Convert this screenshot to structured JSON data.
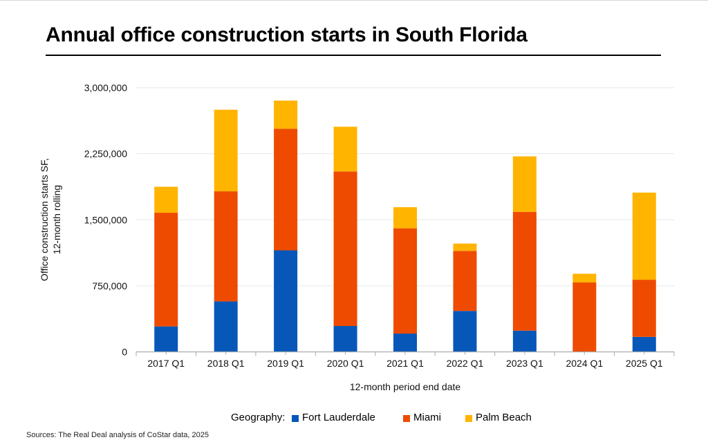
{
  "title": "Annual office construction starts in South Florida",
  "source": "Sources: The Real Deal analysis of CoStar data, 2025",
  "legend": {
    "title": "Geography:",
    "items": [
      {
        "label": "Fort Lauderdale",
        "color": "#0757b8"
      },
      {
        "label": "Miami",
        "color": "#ee4b00"
      },
      {
        "label": "Palm Beach",
        "color": "#ffb400"
      }
    ]
  },
  "chart_data": {
    "type": "bar",
    "stacked": true,
    "title": "Annual office construction starts in South Florida",
    "xlabel": "12-month period end date",
    "ylabel": "Office construction starts SF, 12-month rolling",
    "ylabel_lines": [
      "Office construction starts SF,",
      "12-month rolling"
    ],
    "ylim": [
      0,
      3000000
    ],
    "yticks": [
      0,
      750000,
      1500000,
      2250000,
      3000000
    ],
    "ytick_labels": [
      "0",
      "750,000",
      "1,500,000",
      "2,250,000",
      "3,000,000"
    ],
    "grid": true,
    "legend_position": "bottom",
    "categories": [
      "2017 Q1",
      "2018 Q1",
      "2019 Q1",
      "2020 Q1",
      "2021 Q1",
      "2022 Q1",
      "2023 Q1",
      "2024 Q1",
      "2025 Q1"
    ],
    "series": [
      {
        "name": "Fort Lauderdale",
        "color": "#0757b8",
        "values": [
          289000,
          573000,
          1153000,
          294000,
          208000,
          465000,
          241000,
          0,
          170000
        ]
      },
      {
        "name": "Miami",
        "color": "#ee4b00",
        "values": [
          1291000,
          1250000,
          1381000,
          1755000,
          1195000,
          682000,
          1349000,
          788000,
          649000
        ]
      },
      {
        "name": "Palm Beach",
        "color": "#ffb400",
        "values": [
          295000,
          927000,
          320000,
          508000,
          240000,
          83000,
          630000,
          99000,
          990000
        ]
      }
    ]
  }
}
